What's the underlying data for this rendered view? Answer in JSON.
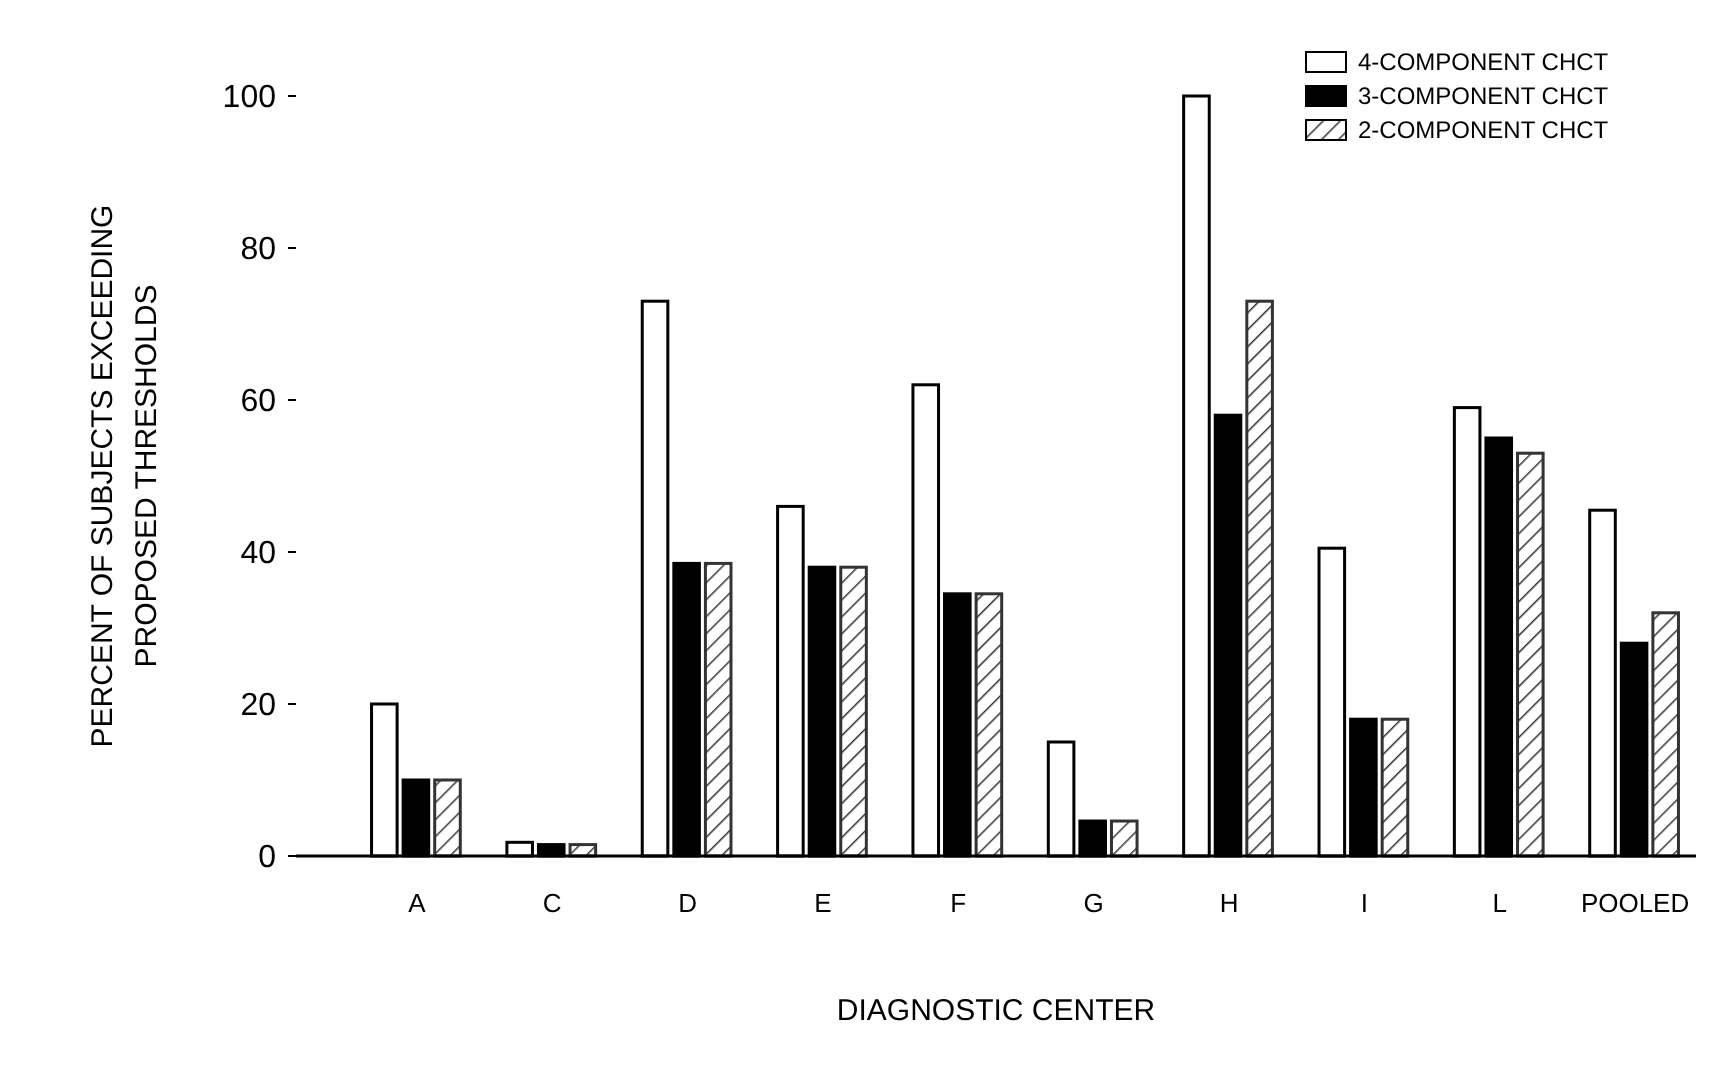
{
  "chart_data": {
    "type": "bar",
    "xlabel": "DIAGNOSTIC CENTER",
    "ylabel": "PERCENT OF SUBJECTS EXCEEDING\nPROPOSED THRESHOLDS",
    "categories": [
      "A",
      "C",
      "D",
      "E",
      "F",
      "G",
      "H",
      "I",
      "L",
      "POOLED"
    ],
    "series": [
      {
        "name": "4-COMPONENT CHCT",
        "color": "#ffffff",
        "values": [
          20,
          1.8,
          73,
          46,
          62,
          15,
          100,
          40.5,
          59,
          45.5
        ]
      },
      {
        "name": "3-COMPONENT CHCT",
        "color": "#000000",
        "values": [
          10,
          1.5,
          38.5,
          38,
          34.5,
          4.6,
          58,
          18,
          55,
          28
        ]
      },
      {
        "name": "2-COMPONENT CHCT",
        "color": "#333333",
        "values": [
          10,
          1.5,
          38.5,
          38,
          34.5,
          4.6,
          73,
          18,
          53,
          32
        ]
      }
    ],
    "ylim": [
      0,
      100
    ],
    "yticks": [
      0,
      20,
      40,
      60,
      80,
      100
    ],
    "legend": "top right",
    "grid": false
  }
}
